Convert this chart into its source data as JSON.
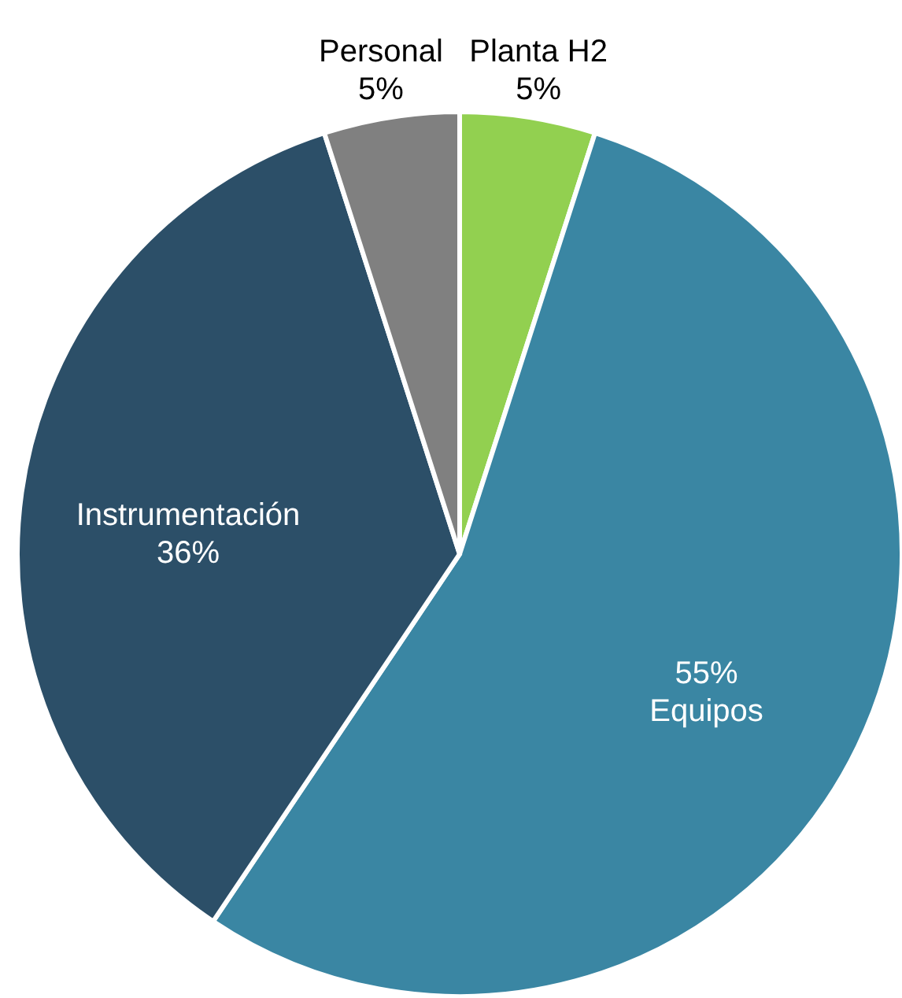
{
  "chart_data": {
    "type": "pie",
    "categories": [
      "Planta H2",
      "Equipos",
      "Instrumentación",
      "Personal"
    ],
    "values": [
      5,
      55,
      36,
      5
    ],
    "value_labels": [
      "5%",
      "55%",
      "36%",
      "5%"
    ],
    "colors": [
      "#92d050",
      "#3a86a3",
      "#2c4f68",
      "#808080"
    ]
  }
}
